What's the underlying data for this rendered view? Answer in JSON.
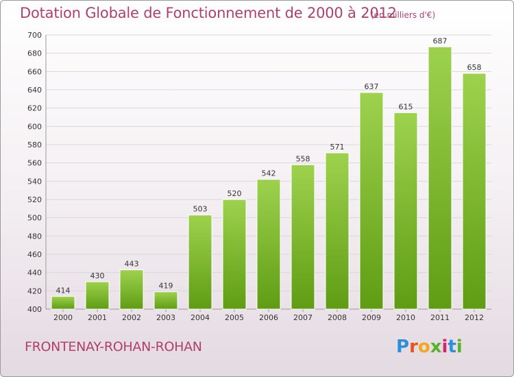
{
  "header": {
    "title": "Dotation Globale de Fonctionnement de 2000 à 2012",
    "subtitle": "(en milliers d'€)"
  },
  "footer": {
    "city": "FRONTENAY-ROHAN-ROHAN",
    "logo_letters": [
      "P",
      "r",
      "o",
      "x",
      "i",
      "t",
      "i"
    ],
    "logo_colors": [
      "#2e8fd8",
      "#e8541b",
      "#f0a81e",
      "#57b22c",
      "#d6246d",
      "#2e8fd8",
      "#57b22c"
    ]
  },
  "chart_data": {
    "type": "bar",
    "title": "Dotation Globale de Fonctionnement de 2000 à 2012",
    "subtitle": "(en milliers d'€)",
    "categories": [
      "2000",
      "2001",
      "2002",
      "2003",
      "2004",
      "2005",
      "2006",
      "2007",
      "2008",
      "2009",
      "2010",
      "2011",
      "2012"
    ],
    "values": [
      414,
      430,
      443,
      419,
      503,
      520,
      542,
      558,
      571,
      637,
      615,
      687,
      658
    ],
    "ylim": [
      400,
      700
    ],
    "yticks": [
      400,
      420,
      440,
      460,
      480,
      500,
      520,
      540,
      560,
      580,
      600,
      620,
      640,
      660,
      680,
      700
    ],
    "grid": true,
    "legend": "none",
    "bar_color_top": "#9ed24e",
    "bar_color_bottom": "#5f9c14"
  }
}
